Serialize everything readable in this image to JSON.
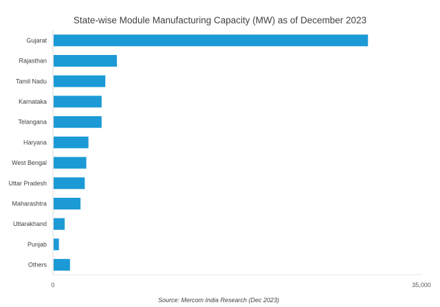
{
  "chart_data": {
    "type": "bar",
    "orientation": "horizontal",
    "title": "State-wise Module Manufacturing Capacity (MW) as of December 2023",
    "categories": [
      "Gujarat",
      "Rajasthan",
      "Tamil Nadu",
      "Karnataka",
      "Telangana",
      "Haryana",
      "West Bengal",
      "Uttar Pradesh",
      "Maharashtra",
      "Uttarakhand",
      "Punjab",
      "Others"
    ],
    "values": [
      29800,
      6000,
      4900,
      4550,
      4550,
      3300,
      3100,
      2950,
      2550,
      1050,
      500,
      1550
    ],
    "xlabel": "",
    "ylabel": "",
    "xlim": [
      0,
      35000
    ],
    "x_tick_labels": [
      "0",
      "35,000"
    ],
    "grid": false,
    "bar_color": "#1b9ad6",
    "source": "Source: Mercom India Research (Dec 2023)"
  }
}
